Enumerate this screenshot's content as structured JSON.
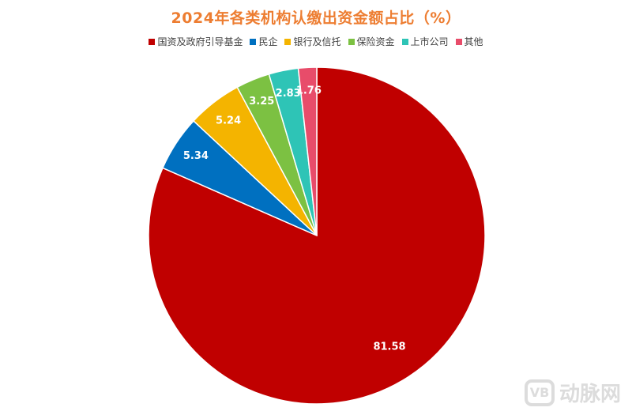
{
  "chart_data": {
    "type": "pie",
    "title": "2024年各类机构认缴出资金额占比（%）",
    "legend_position": "top",
    "slices": [
      {
        "label": "国资及政府引导基金",
        "value": 81.58,
        "color": "#c00000"
      },
      {
        "label": "民企",
        "value": 5.34,
        "color": "#0070c0"
      },
      {
        "label": "银行及信托",
        "value": 5.24,
        "color": "#f4b400"
      },
      {
        "label": "保险资金",
        "value": 3.25,
        "color": "#7cc142"
      },
      {
        "label": "上市公司",
        "value": 2.83,
        "color": "#2ec4b6"
      },
      {
        "label": "其他",
        "value": 1.76,
        "color": "#e84c6a"
      }
    ]
  },
  "watermark": {
    "logo_text": "VB",
    "brand": "动脉网"
  }
}
